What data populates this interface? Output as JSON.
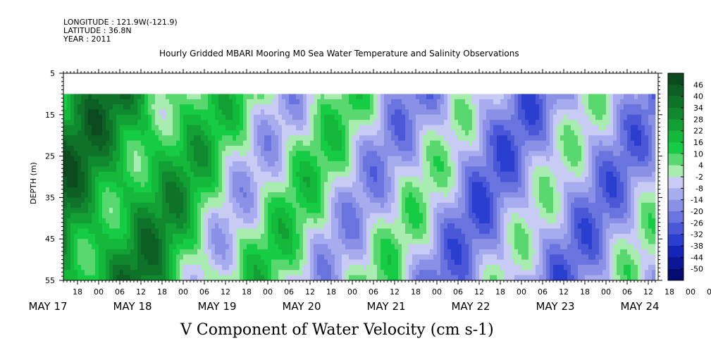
{
  "header": {
    "longitude": "LONGITUDE : 121.9W(-121.9)",
    "latitude": "LATITUDE : 36.8N",
    "year": "YEAR : 2011"
  },
  "title": "Hourly Gridded MBARI Mooring M0 Sea Water Temperature and Salinity Observations",
  "x_title": "V Component of Water Velocity (cm s-1)",
  "chart_data": {
    "type": "heatmap",
    "title": "Hourly Gridded MBARI Mooring M0 Sea Water Temperature and Salinity Observations",
    "xlabel": "V Component of Water Velocity (cm s-1)",
    "ylabel": "DEPTH (m)",
    "y_ticks": [
      5,
      15,
      25,
      35,
      45,
      55
    ],
    "y_range": [
      5,
      55
    ],
    "y_inverted": true,
    "x_ticks_hours": [
      "18",
      "00",
      "06",
      "12",
      "18",
      "00",
      "06",
      "12",
      "18",
      "00",
      "06",
      "12",
      "18",
      "00",
      "06",
      "12",
      "18",
      "00",
      "06",
      "12",
      "18",
      "00",
      "06",
      "12",
      "18",
      "00",
      "06",
      "12",
      "18",
      "00",
      "06",
      "12"
    ],
    "x_dates": [
      "MAY 17",
      "MAY 18",
      "MAY 19",
      "MAY 20",
      "MAY 21",
      "MAY 22",
      "MAY 23",
      "MAY 24"
    ],
    "x_range": [
      "2011-05-17T14:00",
      "2011-05-24T14:00"
    ],
    "data_depth_range": [
      10,
      55
    ],
    "colorbar_labels": [
      "46",
      "40",
      "34",
      "28",
      "22",
      "16",
      "10",
      "4",
      "-2",
      "-8",
      "-14",
      "-20",
      "-26",
      "-32",
      "-38",
      "-44",
      "-50"
    ],
    "colorbar_colors": [
      "#0a4a1e",
      "#0c5e22",
      "#0e7228",
      "#10882e",
      "#12a034",
      "#14b83a",
      "#16cc44",
      "#5ad870",
      "#a8ecb0",
      "#c8ccf4",
      "#a6acee",
      "#8a90e6",
      "#6a74de",
      "#4a58d8",
      "#2a3ed0",
      "#1424b6",
      "#0a1694",
      "#040a70"
    ],
    "dominant_pattern": [
      {
        "date": "2011-05-17",
        "value": 25
      },
      {
        "date": "2011-05-18",
        "value": 22
      },
      {
        "date": "2011-05-19",
        "value": 2
      },
      {
        "date": "2011-05-20",
        "value": 0
      },
      {
        "date": "2011-05-21",
        "value": -6
      },
      {
        "date": "2011-05-22",
        "value": -14
      },
      {
        "date": "2011-05-23",
        "value": -12
      },
      {
        "date": "2011-05-24",
        "value": -10
      }
    ]
  }
}
